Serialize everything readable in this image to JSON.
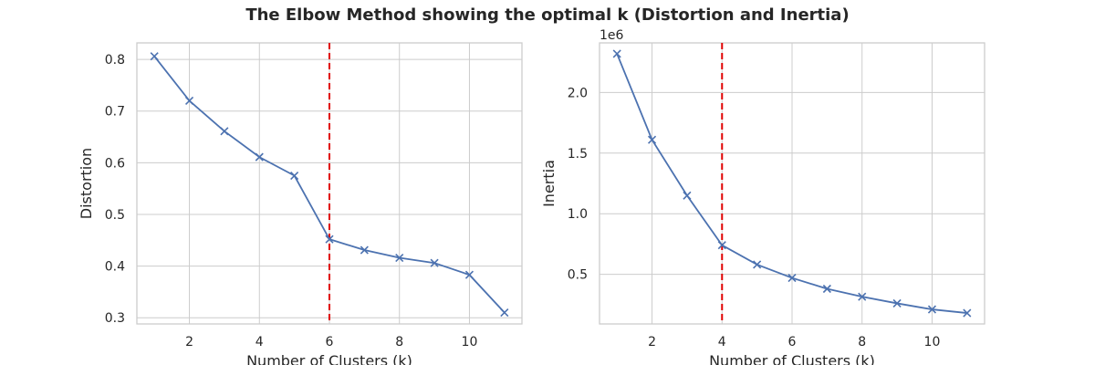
{
  "figure": {
    "title": "The Elbow Method showing the optimal k (Distortion and Inertia)"
  },
  "chart_data": [
    {
      "type": "line",
      "xlabel": "Number of Clusters (k)",
      "ylabel": "Distortion",
      "x": [
        1,
        2,
        3,
        4,
        5,
        6,
        7,
        8,
        9,
        10,
        11
      ],
      "y": [
        0.806,
        0.72,
        0.661,
        0.611,
        0.575,
        0.452,
        0.431,
        0.416,
        0.406,
        0.383,
        0.31
      ],
      "xlim": [
        0.5,
        11.5
      ],
      "ylim": [
        0.288,
        0.832
      ],
      "xticks": [
        2,
        4,
        6,
        8,
        10
      ],
      "xtick_labels": [
        "2",
        "4",
        "6",
        "8",
        "10"
      ],
      "yticks": [
        0.3,
        0.4,
        0.5,
        0.6,
        0.7,
        0.8
      ],
      "ytick_labels": [
        "0.3",
        "0.4",
        "0.5",
        "0.6",
        "0.7",
        "0.8"
      ],
      "offset_label": "",
      "vline": 6,
      "grid": true,
      "marker": "x",
      "colors": {
        "line": "#4c72b0",
        "vline": "#e00000",
        "grid": "#cccccc",
        "spine": "#cccccc"
      }
    },
    {
      "type": "line",
      "xlabel": "Number of Clusters (k)",
      "ylabel": "Inertia",
      "x": [
        1,
        2,
        3,
        4,
        5,
        6,
        7,
        8,
        9,
        10,
        11
      ],
      "y": [
        2.32,
        1.61,
        1.15,
        0.74,
        0.58,
        0.47,
        0.38,
        0.315,
        0.26,
        0.21,
        0.18
      ],
      "xlim": [
        0.5,
        11.5
      ],
      "ylim": [
        0.09,
        2.41
      ],
      "xticks": [
        2,
        4,
        6,
        8,
        10
      ],
      "xtick_labels": [
        "2",
        "4",
        "6",
        "8",
        "10"
      ],
      "yticks": [
        0.5,
        1.0,
        1.5,
        2.0
      ],
      "ytick_labels": [
        "0.5",
        "1.0",
        "1.5",
        "2.0"
      ],
      "offset_label": "1e6",
      "vline": 4,
      "grid": true,
      "marker": "x",
      "colors": {
        "line": "#4c72b0",
        "vline": "#e00000",
        "grid": "#cccccc",
        "spine": "#cccccc"
      }
    }
  ]
}
